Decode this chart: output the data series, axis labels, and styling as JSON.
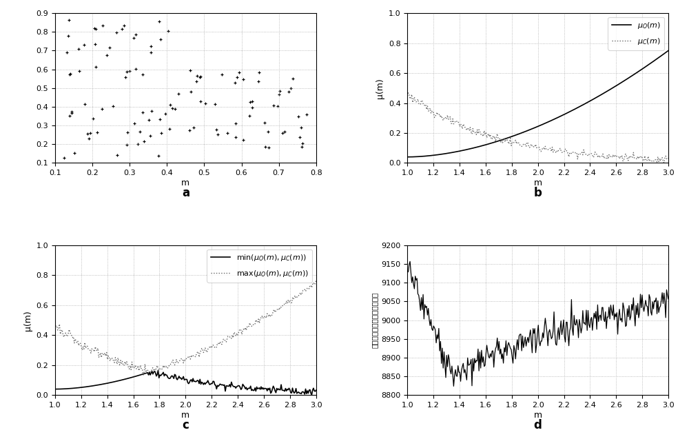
{
  "scatter_xlim": [
    0.1,
    0.8
  ],
  "scatter_ylim": [
    0.1,
    0.9
  ],
  "scatter_xticks": [
    0.1,
    0.2,
    0.3,
    0.4,
    0.5,
    0.6,
    0.7,
    0.8
  ],
  "scatter_yticks": [
    0.1,
    0.2,
    0.3,
    0.4,
    0.5,
    0.6,
    0.7,
    0.8,
    0.9
  ],
  "label_a": "a",
  "label_b": "b",
  "label_c": "c",
  "label_d": "d",
  "plot_b_ylabel": "μ(m)",
  "plot_c_ylabel": "μ(m)",
  "plot_d_ylabel": "高斯核的模糊聊类指标的数值",
  "plot_b_legend1": "$\\mu_O(m)$",
  "plot_b_legend2": "$\\mu_C(m)$",
  "plot_c_legend1": "$\\min(\\mu_O(m),\\mu_C(m))$",
  "plot_c_legend2": "$\\max(\\mu_O(m),\\mu_C(m))$",
  "m_xlim": [
    1,
    3
  ],
  "m_xticks": [
    1,
    1.2,
    1.4,
    1.6,
    1.8,
    2,
    2.2,
    2.4,
    2.6,
    2.8,
    3
  ],
  "plot_b_ylim": [
    0,
    1
  ],
  "plot_b_yticks": [
    0,
    0.2,
    0.4,
    0.6,
    0.8,
    1
  ],
  "plot_c_ylim": [
    0,
    1
  ],
  "plot_c_yticks": [
    0,
    0.2,
    0.4,
    0.6,
    0.8,
    1
  ],
  "plot_d_ylim": [
    8800,
    9200
  ],
  "plot_d_yticks": [
    8800,
    8850,
    8900,
    8950,
    9000,
    9050,
    9100,
    9150,
    9200
  ],
  "background_color": "#ffffff"
}
